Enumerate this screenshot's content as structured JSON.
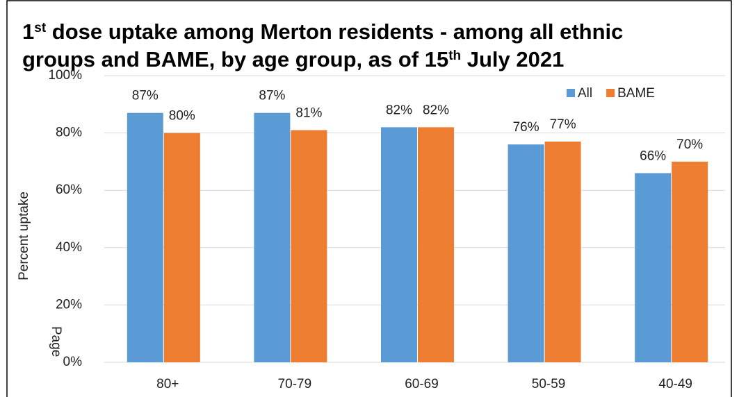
{
  "chart_data": {
    "type": "bar",
    "title": [
      [
        {
          "text": "1"
        },
        {
          "text": "st",
          "sup": true
        },
        {
          "text": " dose uptake among Merton residents - among all ethnic"
        }
      ],
      [
        {
          "text": "groups and BAME, by age group, as of 15"
        },
        {
          "text": "th",
          "sup": true
        },
        {
          "text": " July 2021"
        }
      ]
    ],
    "y_label": "Percent uptake",
    "page_label": "Page",
    "categories": [
      "80+",
      "70-79",
      "60-69",
      "50-59",
      "40-49"
    ],
    "series": [
      {
        "name": "All",
        "color": "#5b9bd5",
        "values": [
          87,
          87,
          82,
          76,
          66
        ],
        "value_labels": [
          "87%",
          "87%",
          "82%",
          "76%",
          "66%"
        ]
      },
      {
        "name": "BAME",
        "color": "#ed7d31",
        "values": [
          80,
          81,
          82,
          77,
          70
        ],
        "value_labels": [
          "80%",
          "81%",
          "82%",
          "77%",
          "70%"
        ]
      }
    ],
    "ylim": [
      0,
      100
    ],
    "yticks": [
      {
        "value": 0,
        "label": "0%"
      },
      {
        "value": 20,
        "label": "20%"
      },
      {
        "value": 40,
        "label": "40%"
      },
      {
        "value": 60,
        "label": "60%"
      },
      {
        "value": 80,
        "label": "80%"
      },
      {
        "value": 100,
        "label": "100%"
      }
    ],
    "grid": true,
    "legend": "top-right"
  }
}
